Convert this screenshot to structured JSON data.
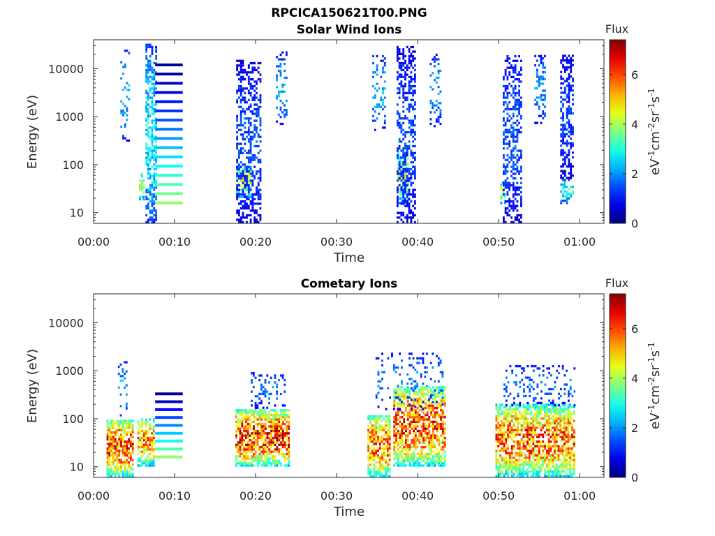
{
  "figure_title": "RPCICA150621T00.PNG",
  "colorbar": {
    "label": "Flux",
    "ticks": [
      "0",
      "2",
      "4",
      "6"
    ]
  },
  "chart_data": [
    {
      "type": "heatmap",
      "title": "Solar Wind Ions",
      "xlabel": "Time",
      "ylabel": "Energy (eV)",
      "yscale": "log",
      "x_ticks": [
        "00:00",
        "00:10",
        "00:20",
        "00:30",
        "00:40",
        "00:50",
        "01:00"
      ],
      "xlim_minutes": [
        0,
        63
      ],
      "y_ticks": [
        "10",
        "100",
        "1000",
        "10000"
      ],
      "ylim": [
        6,
        40000
      ],
      "colorbar_range": [
        0,
        7.4
      ],
      "bursts": [
        {
          "t_start": 3.3,
          "t_end": 4.6,
          "e_min": 300,
          "e_max": 25000,
          "peak_flux": 2.5,
          "density": 0.25
        },
        {
          "t_start": 5.6,
          "t_end": 6.4,
          "e_min": 18,
          "e_max": 70,
          "peak_flux": 4.8,
          "density": 0.6
        },
        {
          "t_start": 6.4,
          "t_end": 7.8,
          "e_min": 6,
          "e_max": 35000,
          "peak_flux": 3.0,
          "density": 0.55
        },
        {
          "t_start": 17.6,
          "t_end": 19.5,
          "e_min": 20,
          "e_max": 90,
          "peak_flux": 5.0,
          "density": 0.7
        },
        {
          "t_start": 17.6,
          "t_end": 20.6,
          "e_min": 6,
          "e_max": 16000,
          "peak_flux": 1.6,
          "density": 0.45
        },
        {
          "t_start": 22.5,
          "t_end": 23.9,
          "e_min": 600,
          "e_max": 22000,
          "peak_flux": 2.3,
          "density": 0.3
        },
        {
          "t_start": 34.4,
          "t_end": 36.0,
          "e_min": 500,
          "e_max": 20000,
          "peak_flux": 2.5,
          "density": 0.25
        },
        {
          "t_start": 37.5,
          "t_end": 39.0,
          "e_min": 15,
          "e_max": 200,
          "peak_flux": 4.8,
          "density": 0.6
        },
        {
          "t_start": 37.4,
          "t_end": 39.8,
          "e_min": 6,
          "e_max": 30000,
          "peak_flux": 1.6,
          "density": 0.45
        },
        {
          "t_start": 41.5,
          "t_end": 43.0,
          "e_min": 600,
          "e_max": 20000,
          "peak_flux": 2.3,
          "density": 0.3
        },
        {
          "t_start": 50.2,
          "t_end": 51.0,
          "e_min": 15,
          "e_max": 45,
          "peak_flux": 4.5,
          "density": 0.5
        },
        {
          "t_start": 50.5,
          "t_end": 52.8,
          "e_min": 6,
          "e_max": 20000,
          "peak_flux": 1.7,
          "density": 0.45
        },
        {
          "t_start": 54.4,
          "t_end": 55.8,
          "e_min": 700,
          "e_max": 20000,
          "peak_flux": 2.2,
          "density": 0.3
        },
        {
          "t_start": 57.6,
          "t_end": 59.2,
          "e_min": 15,
          "e_max": 50,
          "peak_flux": 3.2,
          "density": 0.5
        },
        {
          "t_start": 57.6,
          "t_end": 59.2,
          "e_min": 50,
          "e_max": 20000,
          "peak_flux": 1.5,
          "density": 0.5
        }
      ],
      "bands": [
        {
          "t_start": 7.6,
          "t_end": 11.0,
          "e_min": 16,
          "e_max": 12000,
          "count": 16
        }
      ]
    },
    {
      "type": "heatmap",
      "title": "Cometary Ions",
      "xlabel": "Time",
      "ylabel": "Energy (eV)",
      "yscale": "log",
      "x_ticks": [
        "00:00",
        "00:10",
        "00:20",
        "00:30",
        "00:40",
        "00:50",
        "01:00"
      ],
      "xlim_minutes": [
        0,
        63
      ],
      "y_ticks": [
        "10",
        "100",
        "1000",
        "10000"
      ],
      "ylim": [
        6,
        40000
      ],
      "colorbar_range": [
        0,
        7.4
      ],
      "bursts": [
        {
          "t_start": 1.6,
          "t_end": 5.0,
          "e_min": 6,
          "e_max": 100,
          "peak_flux": 6.8,
          "density": 0.75
        },
        {
          "t_start": 3.0,
          "t_end": 4.2,
          "e_min": 100,
          "e_max": 1600,
          "peak_flux": 2.4,
          "density": 0.3
        },
        {
          "t_start": 5.4,
          "t_end": 7.6,
          "e_min": 10,
          "e_max": 100,
          "peak_flux": 6.0,
          "density": 0.7
        },
        {
          "t_start": 17.5,
          "t_end": 24.2,
          "e_min": 10,
          "e_max": 160,
          "peak_flux": 7.0,
          "density": 0.75
        },
        {
          "t_start": 19.4,
          "t_end": 23.8,
          "e_min": 160,
          "e_max": 900,
          "peak_flux": 2.0,
          "density": 0.2
        },
        {
          "t_start": 33.8,
          "t_end": 36.6,
          "e_min": 6,
          "e_max": 120,
          "peak_flux": 6.5,
          "density": 0.7
        },
        {
          "t_start": 37.0,
          "t_end": 43.5,
          "e_min": 10,
          "e_max": 500,
          "peak_flux": 6.8,
          "density": 0.7
        },
        {
          "t_start": 34.8,
          "t_end": 43.2,
          "e_min": 150,
          "e_max": 2500,
          "peak_flux": 2.0,
          "density": 0.15
        },
        {
          "t_start": 49.6,
          "t_end": 59.5,
          "e_min": 6,
          "e_max": 200,
          "peak_flux": 6.5,
          "density": 0.72
        },
        {
          "t_start": 50.6,
          "t_end": 59.4,
          "e_min": 180,
          "e_max": 1300,
          "peak_flux": 2.0,
          "density": 0.22
        }
      ],
      "bands": [
        {
          "t_start": 7.6,
          "t_end": 11.0,
          "e_min": 16,
          "e_max": 330,
          "count": 9
        }
      ]
    }
  ]
}
